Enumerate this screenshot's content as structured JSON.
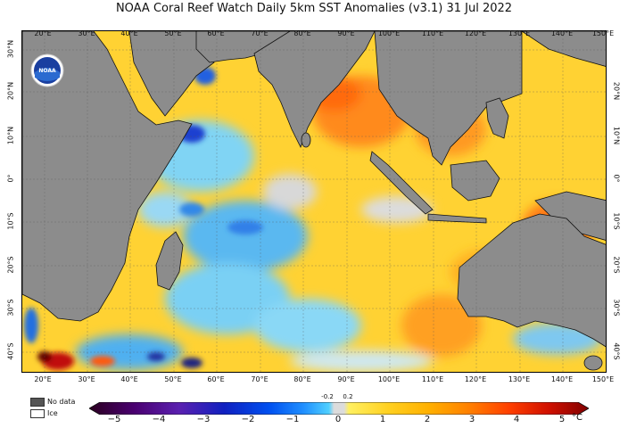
{
  "title": "NOAA Coral Reef Watch Daily 5km SST Anomalies  (v3.1)   31 Jul 2022",
  "logo_text": "NOAA",
  "lon_labels": [
    "20°E",
    "30°E",
    "40°E",
    "50°E",
    "60°E",
    "70°E",
    "80°E",
    "90°E",
    "100°E",
    "110°E",
    "120°E",
    "130°E",
    "140°E",
    "150°E"
  ],
  "lat_labels_left": [
    "30°N",
    "20°N",
    "10°N",
    "0°",
    "10°S",
    "20°S",
    "30°S",
    "40°S"
  ],
  "lat_labels_right": [
    "20°N",
    "10°N",
    "0°",
    "10°S",
    "20°S",
    "30°S",
    "40°S"
  ],
  "legend": {
    "no_data": "No data",
    "ice": "Ice",
    "no_data_color": "#555555",
    "ice_color": "#ffffff"
  },
  "colorbar": {
    "ticks": [
      "−5",
      "−4",
      "−3",
      "−2",
      "−1",
      "0",
      "1",
      "2",
      "3",
      "4",
      "5"
    ],
    "small_ticks": [
      "-0.2",
      "0.2"
    ],
    "unit": "°C",
    "colors": [
      "#2b0020",
      "#4a0070",
      "#5a20b0",
      "#1020c0",
      "#0050f0",
      "#2090ff",
      "#50d0ff",
      "#dcdcdc",
      "#fff060",
      "#ffd020",
      "#ffb000",
      "#ff8000",
      "#ff4000",
      "#d01000",
      "#800000"
    ]
  },
  "colors": {
    "land": "#8c8c8c",
    "ocean_base": "#ffd233",
    "warm": "#ff8a1a",
    "cool": "#6ac8f0",
    "cold": "#1a50e0",
    "neutral": "#d8d8d8"
  }
}
